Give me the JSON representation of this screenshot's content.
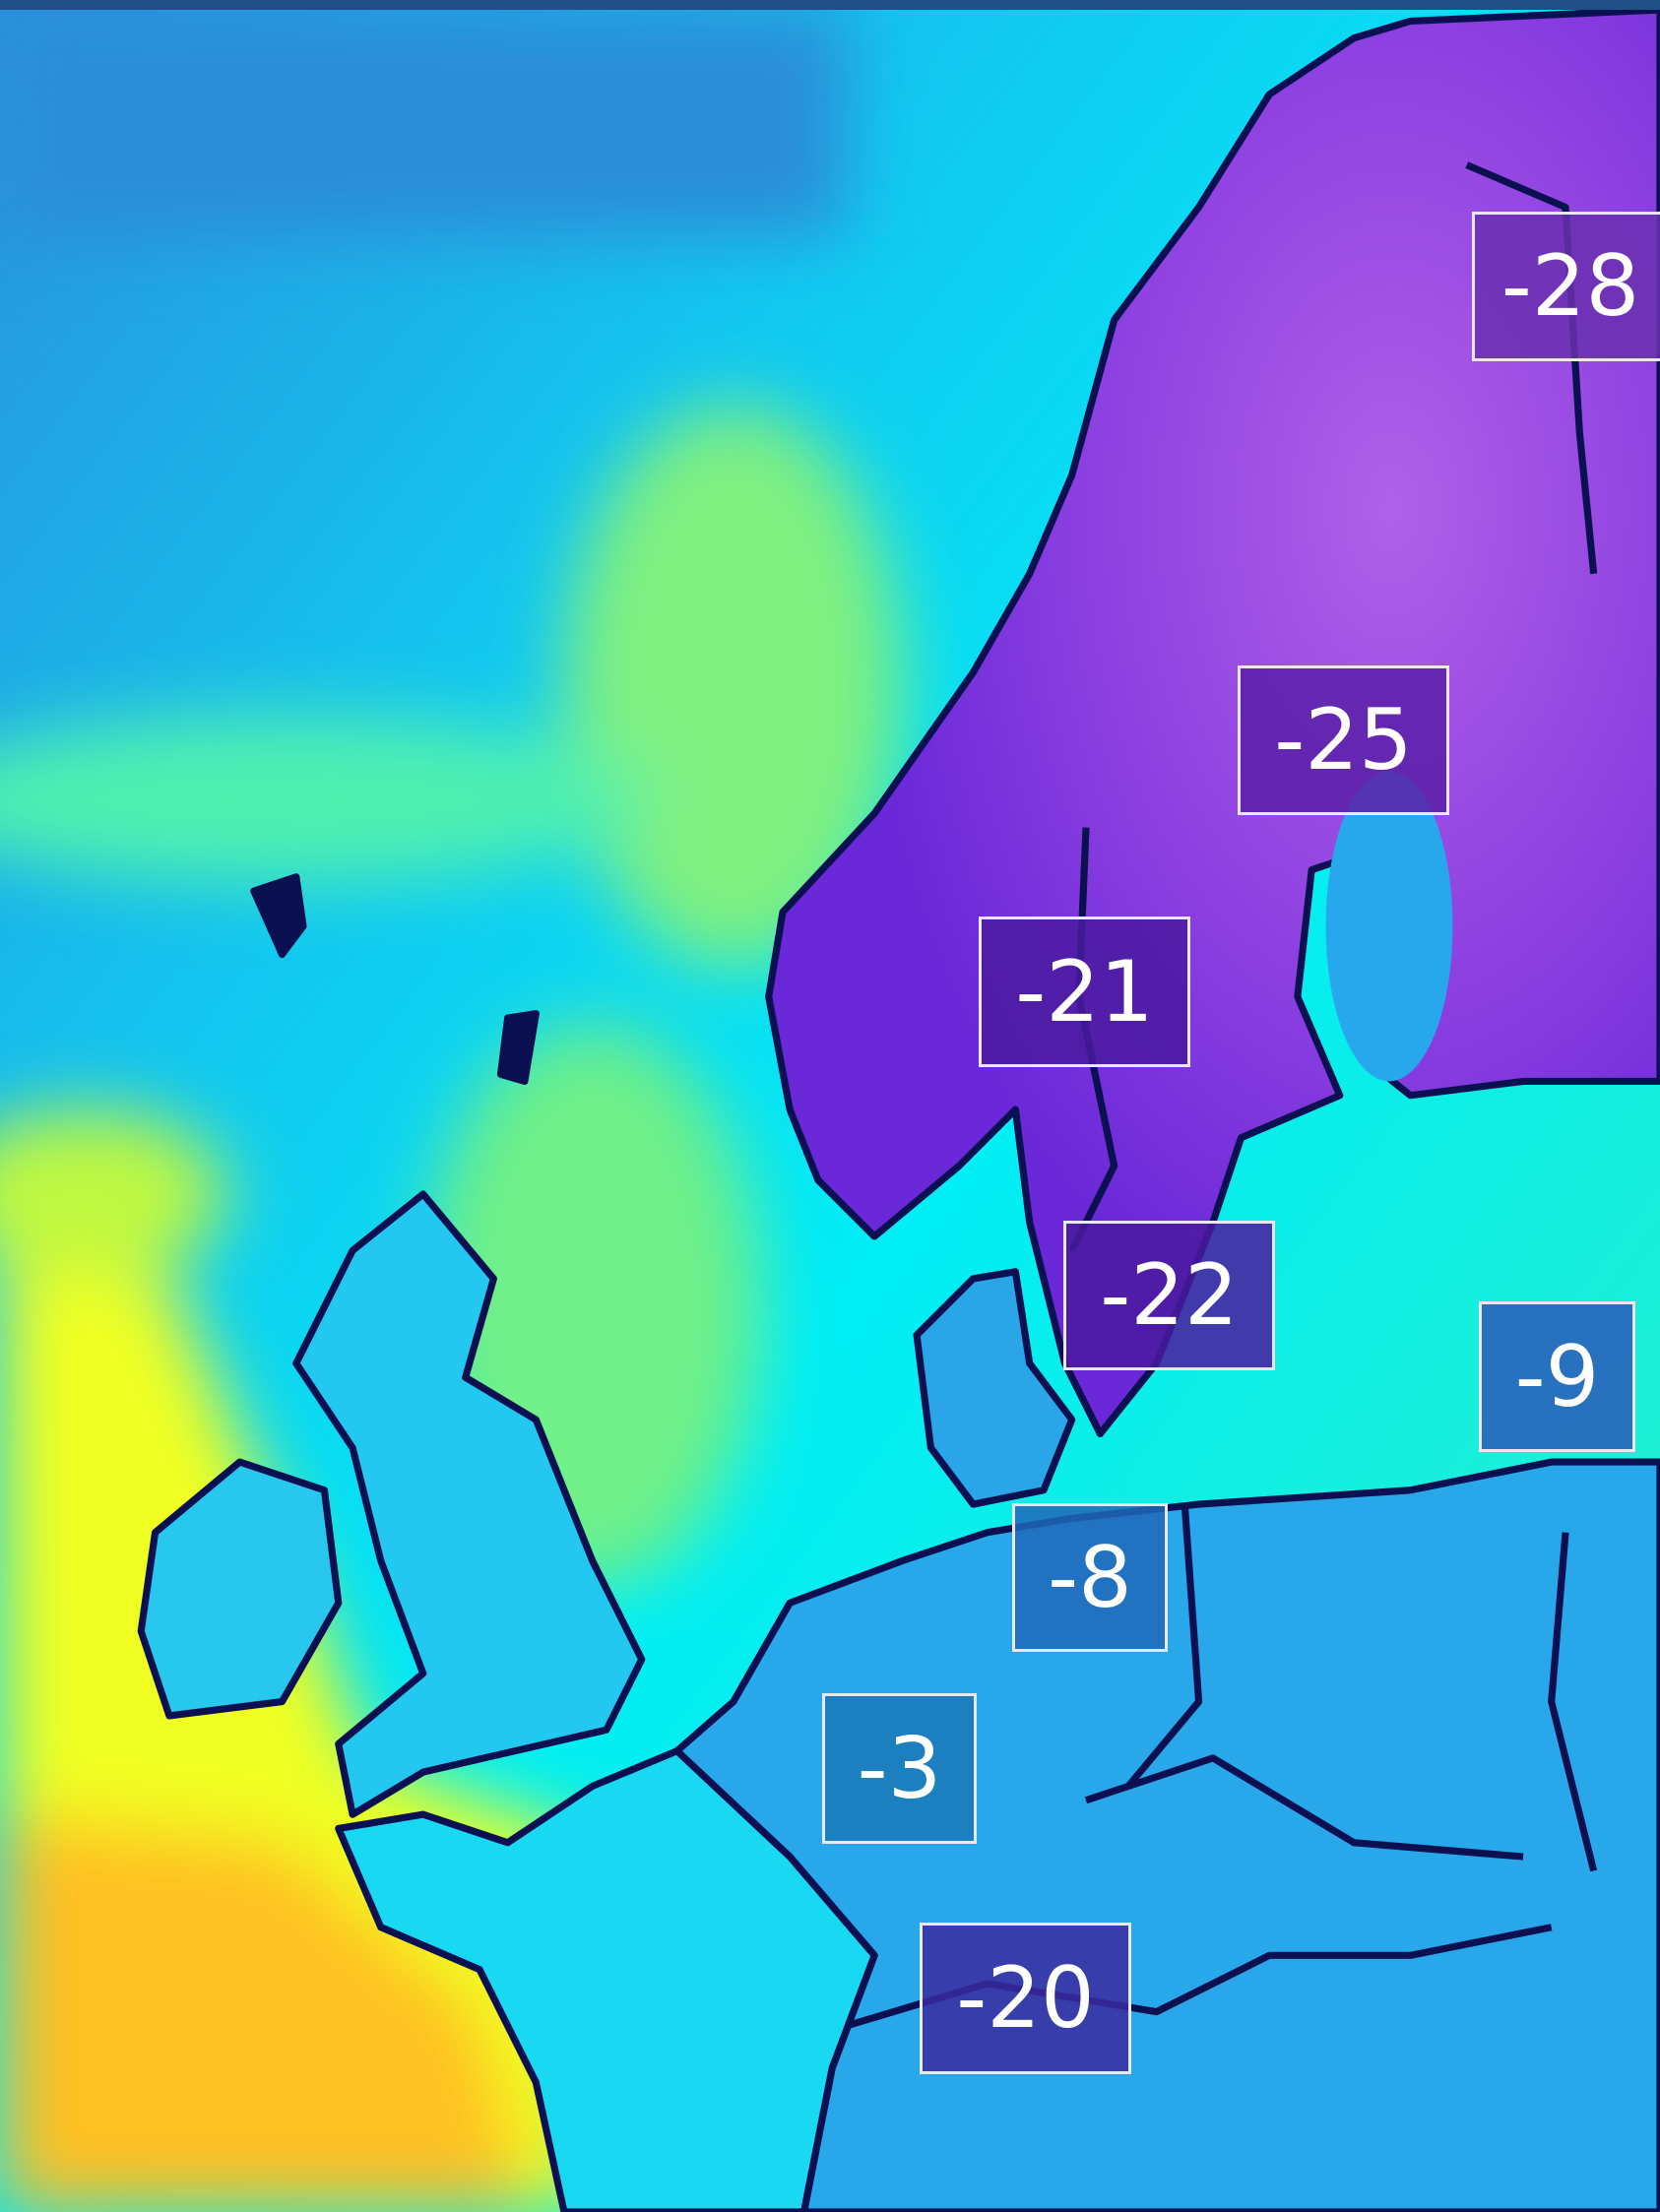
{
  "map": {
    "colors": {
      "ocean_cold": "#2a98e0",
      "ocean_mid": "#00e8f6",
      "ocean_warm": "#7cf07a",
      "warm": "#ffff00",
      "warmest": "#ffb020",
      "land_cold": "#8a3ee0",
      "land_cool": "#26a6ea",
      "coastline": "#0a1050"
    },
    "temperature_labels": [
      {
        "value": "-28",
        "box_color": "#6a30b0"
      },
      {
        "value": "-25",
        "box_color": "#5a20a8"
      },
      {
        "value": "-21",
        "box_color": "#4a1aa0"
      },
      {
        "value": "-22",
        "box_color": "#4a1aa0"
      },
      {
        "value": "-9",
        "box_color": "#2a5ab8"
      },
      {
        "value": "-8",
        "box_color": "#2068b8"
      },
      {
        "value": "-3",
        "box_color": "#1a78b8"
      },
      {
        "value": "-20",
        "box_color": "#3a2aa0"
      }
    ]
  }
}
